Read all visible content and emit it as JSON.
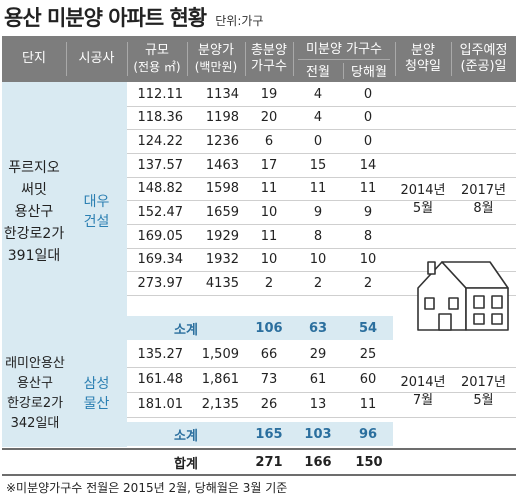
{
  "title": "용산 미분양 아파트 현황",
  "unit": "단위:가구",
  "header": {
    "complex": "단지",
    "builder": "시공사",
    "size": "규모",
    "size_unit": "(전용 ㎡)",
    "price": "분양가",
    "price_unit": "(백만원)",
    "total_units_1": "총분양",
    "total_units_2": "가구수",
    "unsold_group": "미분양 가구수",
    "prev_month": "전월",
    "this_month": "당해월",
    "sale_1": "분양",
    "sale_2": "청약일",
    "move_1": "입주예정",
    "move_2": "(준공)일"
  },
  "complex_a": {
    "name_lines": [
      "푸르지오",
      "써밋",
      "용산구",
      "한강로2가",
      "391일대"
    ],
    "builder_lines": [
      "대우",
      "건설"
    ],
    "rows": [
      {
        "size": "112.11",
        "price": "1134",
        "total": "19",
        "prev": "4",
        "curr": "0"
      },
      {
        "size": "118.36",
        "price": "1198",
        "total": "20",
        "prev": "4",
        "curr": "0"
      },
      {
        "size": "124.22",
        "price": "1236",
        "total": "6",
        "prev": "0",
        "curr": "0"
      },
      {
        "size": "137.57",
        "price": "1463",
        "total": "17",
        "prev": "15",
        "curr": "14"
      },
      {
        "size": "148.82",
        "price": "1598",
        "total": "11",
        "prev": "11",
        "curr": "11"
      },
      {
        "size": "152.47",
        "price": "1659",
        "total": "10",
        "prev": "9",
        "curr": "9"
      },
      {
        "size": "169.05",
        "price": "1929",
        "total": "11",
        "prev": "8",
        "curr": "8"
      },
      {
        "size": "169.34",
        "price": "1932",
        "total": "10",
        "prev": "10",
        "curr": "10"
      },
      {
        "size": "273.97",
        "price": "4135",
        "total": "2",
        "prev": "2",
        "curr": "2"
      }
    ],
    "subtotal": {
      "label": "소계",
      "total": "106",
      "prev": "63",
      "curr": "54"
    },
    "sale_date": [
      "2014년",
      "5월"
    ],
    "move_date": [
      "2017년",
      "8월"
    ]
  },
  "complex_b": {
    "name_lines": [
      "래미안용산",
      "용산구",
      "한강로2가",
      "342일대"
    ],
    "builder_lines": [
      "삼성",
      "물산"
    ],
    "rows": [
      {
        "size": "135.27",
        "price": "1,509",
        "total": "66",
        "prev": "29",
        "curr": "25"
      },
      {
        "size": "161.48",
        "price": "1,861",
        "total": "73",
        "prev": "61",
        "curr": "60"
      },
      {
        "size": "181.01",
        "price": "2,135",
        "total": "26",
        "prev": "13",
        "curr": "11"
      }
    ],
    "subtotal": {
      "label": "소계",
      "total": "165",
      "prev": "103",
      "curr": "96"
    },
    "sale_date": [
      "2014년",
      "7월"
    ],
    "move_date": [
      "2017년",
      "5월"
    ]
  },
  "total": {
    "label": "합계",
    "total": "271",
    "prev": "166",
    "curr": "150"
  },
  "footnote": "※미분양가구수 전월은 2015년 2월, 당해월은 3월 기준",
  "colors": {
    "header_bg": "#7d7d7d",
    "band_bg": "#d9eaf2",
    "accent": "#2b7fb2"
  },
  "icons": [
    "house-illustration"
  ]
}
